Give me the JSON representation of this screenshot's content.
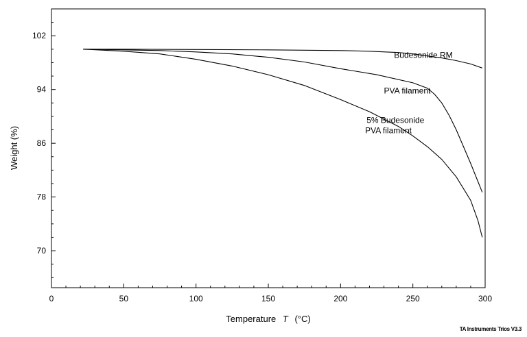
{
  "chart_data": {
    "type": "line",
    "title": "",
    "xlabel": "Temperature",
    "xlabel_symbol": "T",
    "xlabel_unit": "(°C)",
    "ylabel": "Weight  (%)",
    "xlim": [
      0,
      300
    ],
    "ylim": [
      64.5,
      106
    ],
    "x_ticks": [
      0,
      50,
      100,
      150,
      200,
      250,
      300
    ],
    "y_ticks": [
      70,
      78,
      86,
      94,
      102
    ],
    "grid": false,
    "series": [
      {
        "name": "Budesonide RM",
        "x": [
          22,
          50,
          100,
          150,
          200,
          220,
          240,
          250,
          260,
          270,
          280,
          290,
          298
        ],
        "y": [
          100.0,
          100.0,
          99.95,
          99.9,
          99.8,
          99.7,
          99.5,
          99.3,
          99.0,
          98.7,
          98.3,
          97.8,
          97.2
        ]
      },
      {
        "name": "PVA filament",
        "x": [
          22,
          50,
          75,
          100,
          125,
          150,
          175,
          200,
          225,
          250,
          260,
          265,
          270,
          275,
          280,
          285,
          290,
          295,
          298
        ],
        "y": [
          100.0,
          99.9,
          99.8,
          99.6,
          99.3,
          98.8,
          98.1,
          97.1,
          96.2,
          95.0,
          94.2,
          93.3,
          92.0,
          90.2,
          88.0,
          85.5,
          83.0,
          80.3,
          78.7
        ]
      },
      {
        "name": "5% Budesonide PVA filament",
        "x": [
          22,
          50,
          75,
          100,
          125,
          150,
          175,
          200,
          220,
          240,
          250,
          260,
          270,
          280,
          290,
          295,
          298
        ],
        "y": [
          100.0,
          99.7,
          99.3,
          98.5,
          97.5,
          96.2,
          94.6,
          92.5,
          90.7,
          88.5,
          87.1,
          85.5,
          83.6,
          81.0,
          77.5,
          74.5,
          72.0
        ]
      }
    ],
    "annotations": [
      {
        "text": "Budesonide RM",
        "x": 237,
        "y": 98.7
      },
      {
        "text": "PVA filament",
        "x": 230,
        "y": 93.4
      },
      {
        "text": "5% Budesonide",
        "x": 218,
        "y": 89.0
      },
      {
        "text": "PVA filament",
        "x": 217,
        "y": 87.5
      }
    ],
    "watermark": "TA Instruments Trios V3.3",
    "colors": {
      "line": "#000000",
      "axis": "#000000",
      "background": "#ffffff"
    }
  }
}
